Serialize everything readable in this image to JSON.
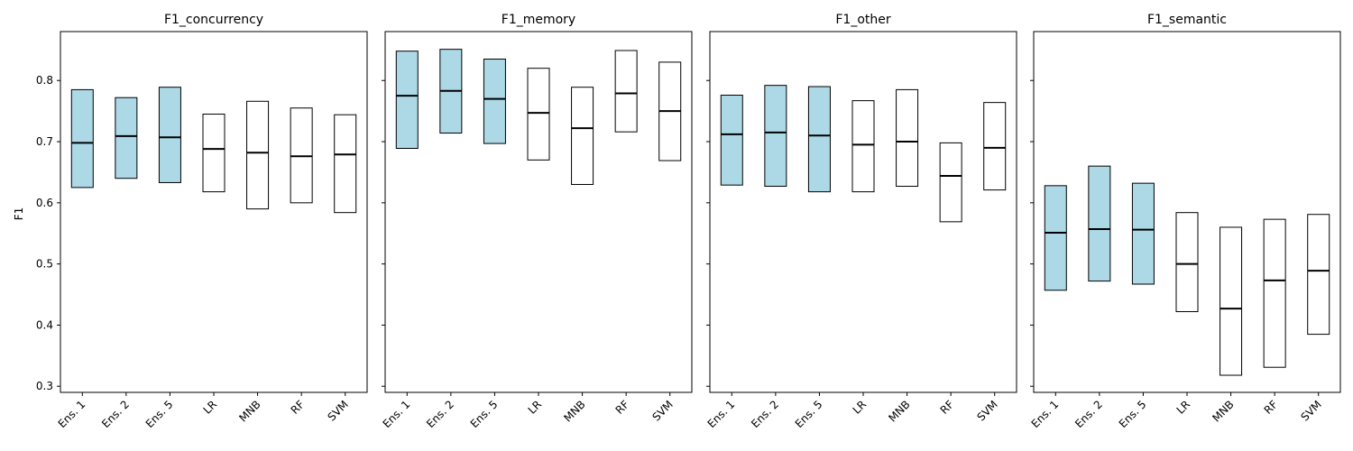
{
  "figure": {
    "ylabel": "F1",
    "highlight_color": "#add8e6",
    "plain_color": "#ffffff",
    "line_color": "#000000"
  },
  "chart_data": [
    {
      "type": "box",
      "title": "F1_concurrency",
      "categories": [
        "Ens. 1",
        "Ens. 2",
        "Ens. 5",
        "LR",
        "MNB",
        "RF",
        "SVM"
      ],
      "boxes": [
        {
          "q1": 0.625,
          "median": 0.698,
          "q3": 0.785
        },
        {
          "q1": 0.64,
          "median": 0.709,
          "q3": 0.772
        },
        {
          "q1": 0.633,
          "median": 0.707,
          "q3": 0.789
        },
        {
          "q1": 0.618,
          "median": 0.688,
          "q3": 0.745
        },
        {
          "q1": 0.59,
          "median": 0.682,
          "q3": 0.766
        },
        {
          "q1": 0.6,
          "median": 0.676,
          "q3": 0.755
        },
        {
          "q1": 0.584,
          "median": 0.679,
          "q3": 0.744
        }
      ],
      "highlighted": [
        true,
        true,
        true,
        false,
        false,
        false,
        false
      ],
      "ylim": [
        0.29,
        0.88
      ],
      "yticks": [
        0.3,
        0.4,
        0.5,
        0.6,
        0.7,
        0.8
      ],
      "ylabel": "F1"
    },
    {
      "type": "box",
      "title": "F1_memory",
      "categories": [
        "Ens. 1",
        "Ens. 2",
        "Ens. 5",
        "LR",
        "MNB",
        "RF",
        "SVM"
      ],
      "boxes": [
        {
          "q1": 0.689,
          "median": 0.775,
          "q3": 0.848
        },
        {
          "q1": 0.714,
          "median": 0.783,
          "q3": 0.851
        },
        {
          "q1": 0.697,
          "median": 0.77,
          "q3": 0.835
        },
        {
          "q1": 0.67,
          "median": 0.747,
          "q3": 0.82
        },
        {
          "q1": 0.63,
          "median": 0.722,
          "q3": 0.789
        },
        {
          "q1": 0.716,
          "median": 0.779,
          "q3": 0.849
        },
        {
          "q1": 0.669,
          "median": 0.75,
          "q3": 0.83
        }
      ],
      "highlighted": [
        true,
        true,
        true,
        false,
        false,
        false,
        false
      ],
      "ylim": [
        0.29,
        0.88
      ],
      "yticks": [
        0.3,
        0.4,
        0.5,
        0.6,
        0.7,
        0.8
      ]
    },
    {
      "type": "box",
      "title": "F1_other",
      "categories": [
        "Ens. 1",
        "Ens. 2",
        "Ens. 5",
        "LR",
        "MNB",
        "RF",
        "SVM"
      ],
      "boxes": [
        {
          "q1": 0.629,
          "median": 0.712,
          "q3": 0.776
        },
        {
          "q1": 0.627,
          "median": 0.715,
          "q3": 0.792
        },
        {
          "q1": 0.618,
          "median": 0.71,
          "q3": 0.79
        },
        {
          "q1": 0.618,
          "median": 0.695,
          "q3": 0.767
        },
        {
          "q1": 0.627,
          "median": 0.7,
          "q3": 0.785
        },
        {
          "q1": 0.569,
          "median": 0.644,
          "q3": 0.698
        },
        {
          "q1": 0.621,
          "median": 0.69,
          "q3": 0.764
        }
      ],
      "highlighted": [
        true,
        true,
        true,
        false,
        false,
        false,
        false
      ],
      "ylim": [
        0.29,
        0.88
      ],
      "yticks": [
        0.3,
        0.4,
        0.5,
        0.6,
        0.7,
        0.8
      ]
    },
    {
      "type": "box",
      "title": "F1_semantic",
      "categories": [
        "Ens. 1",
        "Ens. 2",
        "Ens. 5",
        "LR",
        "MNB",
        "RF",
        "SVM"
      ],
      "boxes": [
        {
          "q1": 0.457,
          "median": 0.551,
          "q3": 0.628
        },
        {
          "q1": 0.472,
          "median": 0.557,
          "q3": 0.66
        },
        {
          "q1": 0.467,
          "median": 0.556,
          "q3": 0.632
        },
        {
          "q1": 0.422,
          "median": 0.5,
          "q3": 0.584
        },
        {
          "q1": 0.318,
          "median": 0.427,
          "q3": 0.56
        },
        {
          "q1": 0.331,
          "median": 0.473,
          "q3": 0.573
        },
        {
          "q1": 0.385,
          "median": 0.489,
          "q3": 0.581
        }
      ],
      "highlighted": [
        true,
        true,
        true,
        false,
        false,
        false,
        false
      ],
      "ylim": [
        0.29,
        0.88
      ],
      "yticks": [
        0.3,
        0.4,
        0.5,
        0.6,
        0.7,
        0.8
      ]
    }
  ]
}
